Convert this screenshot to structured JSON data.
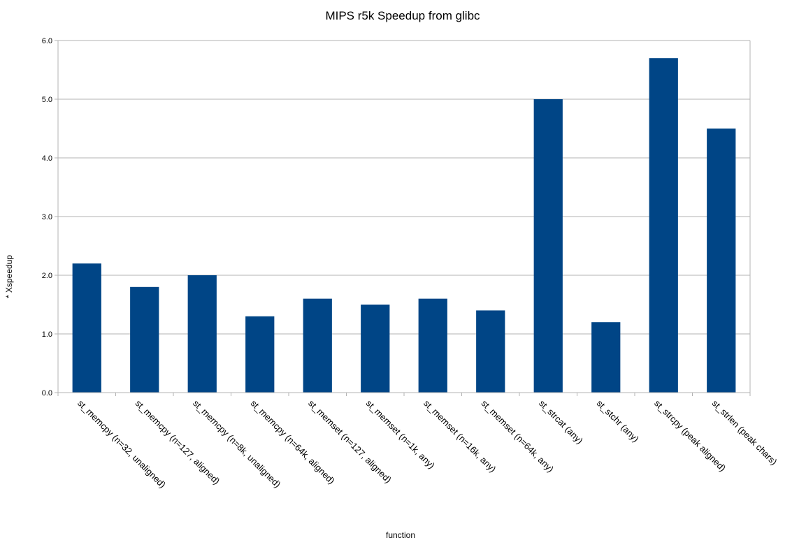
{
  "chart_data": {
    "type": "bar",
    "title": "MIPS r5k Speedup from glibc",
    "xlabel": "function",
    "ylabel": "* Xspeedup",
    "categories": [
      "st_memcpy (n=32, unaligned)",
      "st_memcpy (n=127, aligned)",
      "st_memcpy (n=8k, unaligned)",
      "st_memcpy (n=64k, aligned)",
      "st_memset (n=127, aligned)",
      "st_memset (n=1k, any)",
      "st_memset (n=16k, any)",
      "st_memset (n=64k, any)",
      "st_strcat (any)",
      "st_stchr (any)",
      "st_strcpy (peak aligned)",
      "st_strlen (peak chars)"
    ],
    "values": [
      2.2,
      1.8,
      2.0,
      1.3,
      1.6,
      1.5,
      1.6,
      1.4,
      5.0,
      1.2,
      5.7,
      4.5
    ],
    "ylim": [
      0,
      6
    ],
    "yticks": [
      "0.0",
      "1.0",
      "2.0",
      "3.0",
      "4.0",
      "5.0",
      "6.0"
    ],
    "grid": true,
    "legend": "none",
    "colors": {
      "bar": "#004586",
      "grid": "#b3b3b3",
      "axis": "#b3b3b3"
    }
  }
}
